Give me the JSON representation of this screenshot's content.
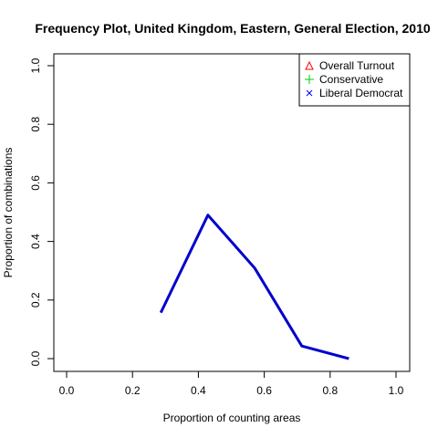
{
  "chart_data": {
    "type": "line",
    "title": "Frequency Plot, United Kingdom, Eastern, General Election, 2010",
    "xlabel": "Proportion of counting areas",
    "ylabel": "Proportion of combinations",
    "xlim": [
      0,
      1
    ],
    "ylim": [
      0,
      1
    ],
    "x_ticks": [
      "0.0",
      "0.2",
      "0.4",
      "0.6",
      "0.8",
      "1.0"
    ],
    "y_ticks": [
      "0.0",
      "0.2",
      "0.4",
      "0.6",
      "0.8",
      "1.0"
    ],
    "grid": false,
    "legend_position": "top-right",
    "legend": [
      {
        "label": "Overall Turnout",
        "symbol": "△",
        "color": "#ff0000"
      },
      {
        "label": "Conservative",
        "symbol": "+",
        "color": "#00cd00"
      },
      {
        "label": "Liberal Democrat",
        "symbol": "×",
        "color": "#0000ff"
      }
    ],
    "series": [
      {
        "color": "#0000cd",
        "points": [
          {
            "x": 0.286,
            "y": 0.157
          },
          {
            "x": 0.429,
            "y": 0.49
          },
          {
            "x": 0.571,
            "y": 0.309
          },
          {
            "x": 0.714,
            "y": 0.043
          },
          {
            "x": 0.857,
            "y": 0.0
          }
        ]
      }
    ]
  }
}
